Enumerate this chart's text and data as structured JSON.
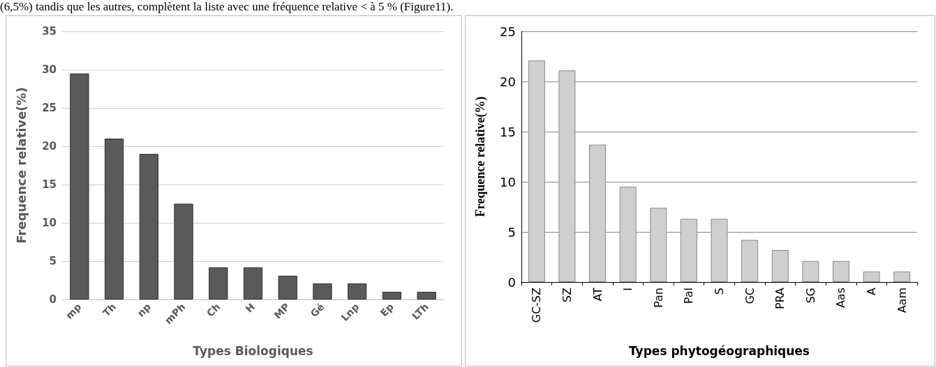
{
  "chart_data": [
    {
      "type": "bar",
      "xlabel": "Types Biologiques",
      "ylabel": "Frequence relative(%)",
      "annotations": [
        "(6,5%) tandis que les autres, complètent la liste avec une fréquence relative < à 5 % (Figure11)."
      ],
      "categories": [
        "mp",
        "Th",
        "np",
        "mPh",
        "Ch",
        "H",
        "MP",
        "Gé",
        "Lnp",
        "Ep",
        "LTh"
      ],
      "values": [
        29.5,
        21,
        19,
        12.5,
        4.2,
        4.2,
        3.1,
        2.1,
        2.1,
        1,
        1
      ],
      "color": "#5a5a5a",
      "ylim": [
        0,
        35
      ],
      "yticks": [
        0,
        5,
        10,
        15,
        20,
        25,
        30,
        35
      ],
      "grid": "y"
    },
    {
      "type": "bar",
      "xlabel": "Types phytogéographiques",
      "ylabel": "Frequence relative(%)",
      "categories": [
        "GC-SZ",
        "SZ",
        "AT",
        "I",
        "Pan",
        "Pal",
        "S",
        "GC",
        "PRA",
        "SG",
        "Aas",
        "A",
        "Aam"
      ],
      "values": [
        22.1,
        21.1,
        13.7,
        9.5,
        7.4,
        6.3,
        6.3,
        4.2,
        3.2,
        2.1,
        2.1,
        1.05,
        1.05
      ],
      "color": "#cfcfcf",
      "ylim": [
        0,
        25
      ],
      "yticks": [
        0,
        5,
        10,
        15,
        20,
        25
      ],
      "grid": "y"
    }
  ]
}
